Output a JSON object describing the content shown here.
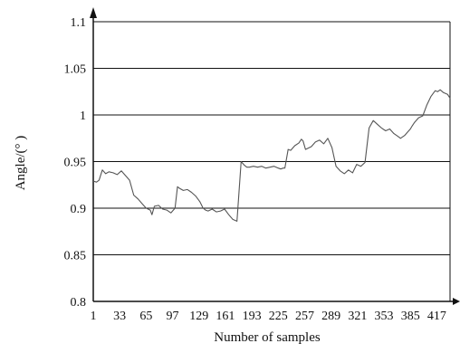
{
  "chart_data": {
    "type": "line",
    "title": "",
    "xlabel": "Number of samples",
    "ylabel": "Angle/(° )",
    "xlim": [
      1,
      433
    ],
    "ylim": [
      0.8,
      1.1
    ],
    "grid": "horizontal",
    "y_ticks": [
      0.8,
      0.85,
      0.9,
      0.95,
      1.0,
      1.05,
      1.1
    ],
    "y_tick_labels": [
      "0.8",
      "0.85",
      "0.9",
      "0.95",
      "1",
      "1.05",
      "1.1"
    ],
    "x_ticks": [
      1,
      33,
      65,
      97,
      129,
      161,
      193,
      225,
      257,
      289,
      321,
      353,
      385,
      417
    ],
    "x_tick_labels": [
      "1",
      "33",
      "65",
      "97",
      "129",
      "161",
      "193",
      "225",
      "257",
      "289",
      "321",
      "353",
      "385",
      "417"
    ],
    "series": [
      {
        "color": "#555555",
        "x": [
          1,
          5,
          8,
          12,
          16,
          20,
          25,
          30,
          35,
          40,
          45,
          50,
          55,
          60,
          65,
          70,
          72,
          75,
          80,
          85,
          90,
          95,
          100,
          103,
          106,
          110,
          115,
          120,
          125,
          130,
          134,
          137,
          140,
          145,
          150,
          155,
          160,
          165,
          170,
          175,
          180,
          184,
          187,
          190,
          195,
          200,
          205,
          210,
          215,
          220,
          225,
          228,
          231,
          233,
          237,
          240,
          245,
          250,
          253,
          255,
          258,
          265,
          270,
          275,
          280,
          285,
          290,
          295,
          300,
          305,
          310,
          315,
          320,
          325,
          330,
          335,
          340,
          345,
          350,
          355,
          360,
          365,
          370,
          373,
          378,
          382,
          385,
          387,
          390,
          395,
          400,
          405,
          410,
          415,
          418,
          421,
          425,
          430,
          433
        ],
        "values": [
          0.929,
          0.928,
          0.93,
          0.941,
          0.937,
          0.939,
          0.938,
          0.936,
          0.94,
          0.935,
          0.93,
          0.914,
          0.91,
          0.905,
          0.9,
          0.898,
          0.893,
          0.902,
          0.903,
          0.899,
          0.898,
          0.895,
          0.9,
          0.923,
          0.921,
          0.919,
          0.92,
          0.917,
          0.913,
          0.907,
          0.9,
          0.898,
          0.897,
          0.899,
          0.896,
          0.897,
          0.899,
          0.893,
          0.888,
          0.886,
          0.95,
          0.946,
          0.944,
          0.944,
          0.945,
          0.944,
          0.945,
          0.943,
          0.944,
          0.945,
          0.943,
          0.942,
          0.943,
          0.943,
          0.963,
          0.962,
          0.967,
          0.97,
          0.974,
          0.972,
          0.963,
          0.966,
          0.971,
          0.973,
          0.969,
          0.975,
          0.965,
          0.945,
          0.94,
          0.937,
          0.941,
          0.938,
          0.947,
          0.945,
          0.949,
          0.986,
          0.994,
          0.99,
          0.986,
          0.983,
          0.985,
          0.98,
          0.977,
          0.975,
          0.978,
          0.982,
          0.985,
          0.988,
          0.992,
          0.997,
          0.999,
          1.011,
          1.02,
          1.026,
          1.025,
          1.027,
          1.024,
          1.022,
          1.018
        ]
      }
    ]
  }
}
